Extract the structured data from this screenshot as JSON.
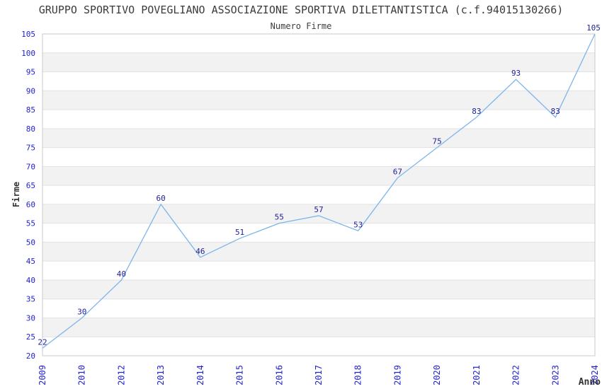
{
  "header": {
    "title": "GRUPPO SPORTIVO POVEGLIANO ASSOCIAZIONE SPORTIVA DILETTANTISTICA (c.f.94015130266)",
    "subtitle": "Numero Firme"
  },
  "chart_data": {
    "type": "line",
    "title": "GRUPPO SPORTIVO POVEGLIANO ASSOCIAZIONE SPORTIVA DILETTANTISTICA (c.f.94015130266)",
    "subtitle": "Numero Firme",
    "categories": [
      "2009",
      "2010",
      "2012",
      "2013",
      "2014",
      "2015",
      "2016",
      "2017",
      "2018",
      "2019",
      "2020",
      "2021",
      "2022",
      "2023",
      "2024"
    ],
    "values": [
      22,
      30,
      40,
      60,
      46,
      51,
      55,
      57,
      53,
      67,
      75,
      83,
      93,
      83,
      105
    ],
    "xlabel": "Anno",
    "ylabel": "Firme",
    "ylim": [
      20,
      105
    ],
    "ytick_step": 5,
    "grid": "horizontal gridlines with alternating bands",
    "legend": "none",
    "markers": "none",
    "colors": {
      "line": "#7cb5ec",
      "tick_label": "#2323d3",
      "data_label": "#1f1f96",
      "band_fill": "#f2f2f2",
      "gridline": "#e2e2e2",
      "plot_border": "#c9c9c9",
      "title": "#3c3c3c",
      "axis_title": "#333333",
      "background": "#ffffff"
    }
  }
}
